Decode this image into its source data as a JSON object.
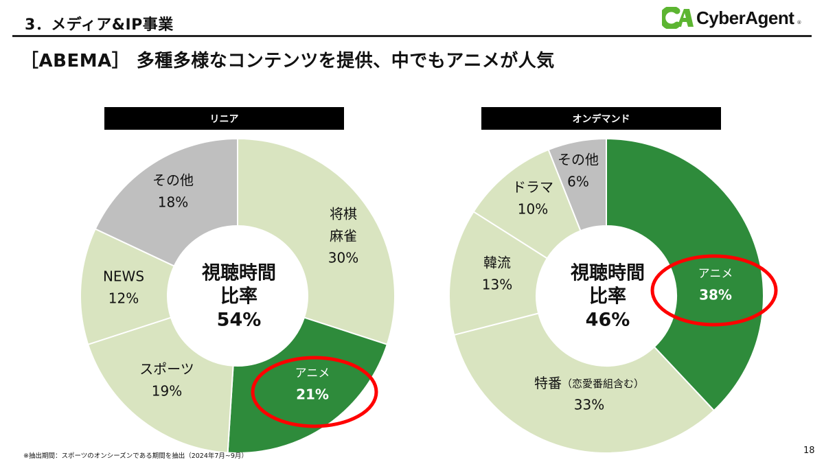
{
  "header": {
    "section_title": "3．メディア&IP事業",
    "logo_text": "CyberAgent",
    "logo_mark": "CA",
    "logo_registered": "®"
  },
  "slide_title": "［ABEMA］ 多種多様なコンテンツを提供、中でもアニメが人気",
  "colors": {
    "dark_green": "#2e8b3b",
    "light_green": "#d9e4c0",
    "gray": "#bfbfbf",
    "highlight_ring": "#ff0000",
    "logo_green": "#5cb531"
  },
  "chart_data": [
    {
      "type": "pie",
      "subtype": "donut",
      "title": "リニア",
      "center_label": [
        "視聴時間",
        "比率",
        "54%"
      ],
      "start": "top",
      "direction": "clockwise",
      "slices": [
        {
          "label": [
            "将棋",
            "麻雀"
          ],
          "value": 30,
          "value_label": "30%",
          "color": "light_green"
        },
        {
          "label": [
            "アニメ"
          ],
          "value": 21,
          "value_label": "21%",
          "color": "dark_green",
          "highlighted": true
        },
        {
          "label": [
            "スポーツ"
          ],
          "value": 19,
          "value_label": "19%",
          "color": "light_green"
        },
        {
          "label": [
            "NEWS"
          ],
          "value": 12,
          "value_label": "12%",
          "color": "light_green"
        },
        {
          "label": [
            "その他"
          ],
          "value": 18,
          "value_label": "18%",
          "color": "gray"
        }
      ]
    },
    {
      "type": "pie",
      "subtype": "donut",
      "title": "オンデマンド",
      "center_label": [
        "視聴時間",
        "比率",
        "46%"
      ],
      "start": "top",
      "direction": "clockwise",
      "slices": [
        {
          "label": [
            "アニメ"
          ],
          "value": 38,
          "value_label": "38%",
          "color": "dark_green",
          "highlighted": true
        },
        {
          "label": [
            "特番（恋愛番組含む）"
          ],
          "value": 33,
          "value_label": "33%",
          "color": "light_green"
        },
        {
          "label": [
            "韓流"
          ],
          "value": 13,
          "value_label": "13%",
          "color": "light_green"
        },
        {
          "label": [
            "ドラマ"
          ],
          "value": 10,
          "value_label": "10%",
          "color": "light_green"
        },
        {
          "label": [
            "その他"
          ],
          "value": 6,
          "value_label": "6%",
          "color": "gray"
        }
      ]
    }
  ],
  "footnote": "※抽出期間：スポーツのオンシーズンである期間を抽出（2024年7月~9月）",
  "page_number": "18"
}
